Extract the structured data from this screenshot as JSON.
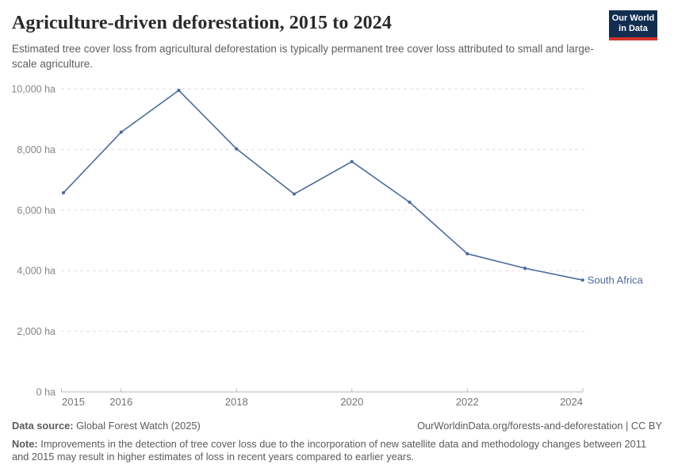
{
  "header": {
    "title": "Agriculture-driven deforestation, 2015 to 2024",
    "subtitle": "Estimated tree cover loss from agricultural deforestation is typically permanent tree cover loss attributed to small and large-scale agriculture.",
    "logo": {
      "line1": "Our World",
      "line2": "in Data"
    }
  },
  "chart_data": {
    "type": "line",
    "title": "Agriculture-driven deforestation, 2015 to 2024",
    "xlabel": "",
    "ylabel": "",
    "x": [
      2015,
      2016,
      2017,
      2018,
      2019,
      2020,
      2021,
      2022,
      2023,
      2024
    ],
    "series": [
      {
        "name": "South Africa",
        "values": [
          6570,
          8570,
          9950,
          8020,
          6530,
          7600,
          6260,
          4560,
          4080,
          3690
        ]
      }
    ],
    "xlim": [
      2015,
      2024
    ],
    "ylim": [
      0,
      10000
    ],
    "y_ticks": [
      0,
      2000,
      4000,
      6000,
      8000,
      10000
    ],
    "y_tick_labels": [
      "0 ha",
      "2,000 ha",
      "4,000 ha",
      "6,000 ha",
      "8,000 ha",
      "10,000 ha"
    ],
    "x_ticks": [
      2015,
      2016,
      2018,
      2020,
      2022,
      2024
    ],
    "x_tick_labels": [
      "2015",
      "2016",
      "2018",
      "2020",
      "2022",
      "2024"
    ],
    "grid": "horizontal-dashed",
    "legend_position": "end-of-line-label",
    "end_label": "South Africa"
  },
  "colors": {
    "line": "#4c6a9c",
    "end_label": "#4c6a9c",
    "grid": "#dedede",
    "axis": "#b8b8b8",
    "y_tick_text": "#868686",
    "x_tick_text": "#747474",
    "logo_navy": "#112e51",
    "logo_red": "#d0342c"
  },
  "footer": {
    "datasource_label": "Data source:",
    "datasource_text": "Global Forest Watch (2025)",
    "link": "OurWorldinData.org/forests-and-deforestation | CC BY",
    "note_label": "Note:",
    "note_text": "Improvements in the detection of tree cover loss due to the incorporation of new satellite data and methodology changes between 2011 and 2015 may result in higher estimates of loss in recent years compared to earlier years."
  }
}
